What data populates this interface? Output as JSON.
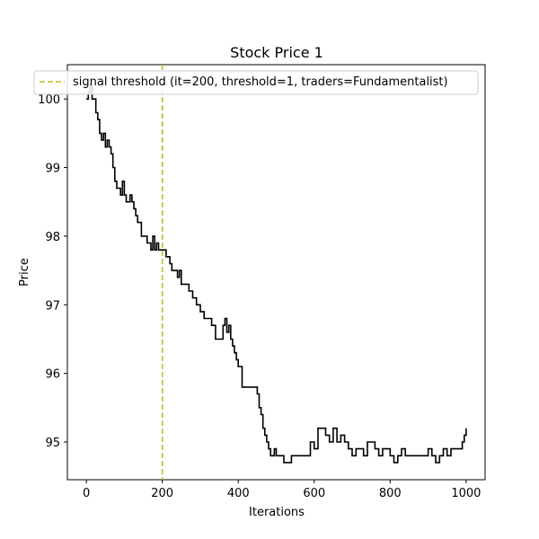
{
  "chart_data": {
    "type": "line",
    "title": "Stock Price 1",
    "xlabel": "Iterations",
    "ylabel": "Price",
    "xlim": [
      -50,
      1050
    ],
    "ylim": [
      94.45,
      100.5
    ],
    "xticks": [
      0,
      200,
      400,
      600,
      800,
      1000
    ],
    "yticks": [
      95,
      96,
      97,
      98,
      99,
      100
    ],
    "grid": false,
    "legend_position": "top",
    "series": [
      {
        "color": "#000000",
        "x": [
          0,
          5,
          10,
          15,
          20,
          25,
          30,
          35,
          40,
          45,
          50,
          55,
          60,
          65,
          70,
          75,
          80,
          85,
          90,
          95,
          100,
          105,
          110,
          115,
          120,
          125,
          130,
          135,
          140,
          145,
          150,
          160,
          170,
          175,
          180,
          185,
          190,
          195,
          200,
          210,
          220,
          225,
          230,
          240,
          245,
          250,
          255,
          260,
          270,
          280,
          290,
          295,
          300,
          305,
          310,
          320,
          330,
          340,
          350,
          360,
          365,
          370,
          375,
          380,
          385,
          390,
          395,
          400,
          410,
          420,
          430,
          440,
          450,
          455,
          460,
          465,
          470,
          475,
          480,
          485,
          490,
          495,
          500,
          505,
          510,
          520,
          530,
          540,
          550,
          560,
          570,
          580,
          590,
          600,
          610,
          620,
          630,
          640,
          650,
          660,
          670,
          680,
          690,
          700,
          710,
          720,
          730,
          740,
          750,
          760,
          770,
          780,
          790,
          800,
          810,
          820,
          830,
          840,
          850,
          860,
          870,
          880,
          890,
          900,
          910,
          920,
          930,
          940,
          950,
          960,
          970,
          980,
          990,
          995,
          1000
        ],
        "y": [
          100.0,
          100.1,
          100.2,
          100.0,
          100.0,
          99.8,
          99.7,
          99.5,
          99.4,
          99.5,
          99.3,
          99.4,
          99.3,
          99.2,
          99.0,
          98.8,
          98.7,
          98.7,
          98.6,
          98.8,
          98.6,
          98.5,
          98.5,
          98.6,
          98.5,
          98.4,
          98.3,
          98.2,
          98.2,
          98.0,
          98.0,
          97.9,
          97.8,
          98.0,
          97.8,
          97.9,
          97.8,
          97.8,
          97.8,
          97.7,
          97.6,
          97.5,
          97.5,
          97.4,
          97.5,
          97.3,
          97.3,
          97.3,
          97.2,
          97.1,
          97.0,
          97.0,
          96.9,
          96.9,
          96.8,
          96.8,
          96.7,
          96.5,
          96.5,
          96.7,
          96.8,
          96.6,
          96.7,
          96.5,
          96.4,
          96.3,
          96.2,
          96.1,
          95.8,
          95.8,
          95.8,
          95.8,
          95.7,
          95.5,
          95.4,
          95.2,
          95.1,
          95.0,
          94.9,
          94.8,
          94.8,
          94.9,
          94.8,
          94.8,
          94.8,
          94.7,
          94.7,
          94.8,
          94.8,
          94.8,
          94.8,
          94.8,
          95.0,
          94.9,
          95.2,
          95.2,
          95.1,
          95.0,
          95.2,
          95.0,
          95.1,
          95.0,
          94.9,
          94.8,
          94.9,
          94.9,
          94.8,
          95.0,
          95.0,
          94.9,
          94.8,
          94.9,
          94.9,
          94.8,
          94.7,
          94.8,
          94.9,
          94.8,
          94.8,
          94.8,
          94.8,
          94.8,
          94.8,
          94.9,
          94.8,
          94.7,
          94.8,
          94.9,
          94.8,
          94.9,
          94.9,
          94.9,
          95.0,
          95.1,
          95.2
        ]
      }
    ],
    "vline": {
      "x": 200,
      "color": "#bcbd22",
      "label": "signal threshold (it=200, threshold=1, traders=Fundamentalist)"
    }
  }
}
